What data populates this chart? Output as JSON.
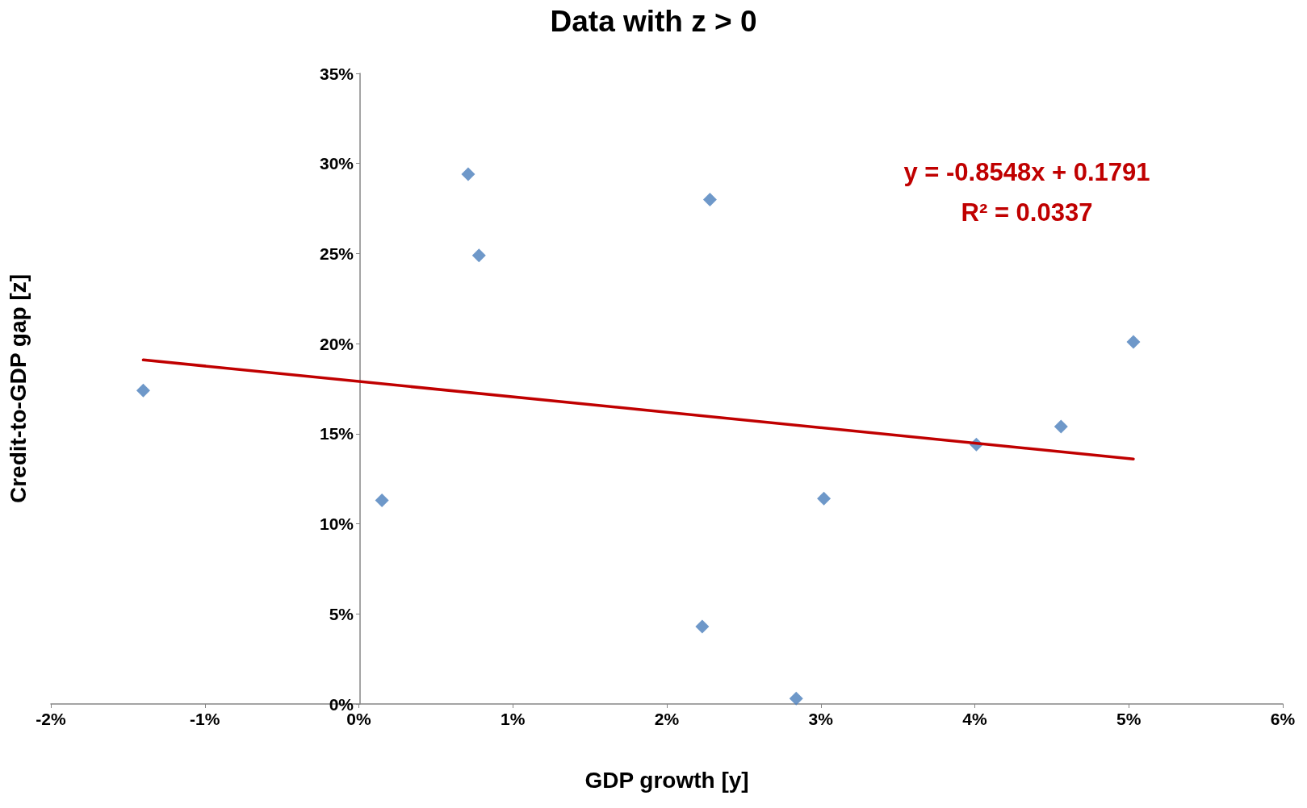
{
  "chart_data": {
    "type": "scatter",
    "title": "Data with z > 0",
    "xlabel": "GDP growth [y]",
    "ylabel": "Credit-to-GDP gap [z]",
    "annotations": [
      "y = -0.8548x + 0.1791",
      "R² = 0.0337"
    ],
    "xlim": [
      -2,
      6
    ],
    "xticks": [
      {
        "value": -2,
        "label": "-2%"
      },
      {
        "value": -1,
        "label": "-1%"
      },
      {
        "value": 0,
        "label": "0%"
      },
      {
        "value": 1,
        "label": "1%"
      },
      {
        "value": 2,
        "label": "2%"
      },
      {
        "value": 3,
        "label": "3%"
      },
      {
        "value": 4,
        "label": "4%"
      },
      {
        "value": 5,
        "label": "5%"
      },
      {
        "value": 6,
        "label": "6%"
      }
    ],
    "ylim": [
      0,
      35
    ],
    "yticks": [
      {
        "value": 0,
        "label": "0%"
      },
      {
        "value": 5,
        "label": "5%"
      },
      {
        "value": 10,
        "label": "10%"
      },
      {
        "value": 15,
        "label": "15%"
      },
      {
        "value": 20,
        "label": "20%"
      },
      {
        "value": 25,
        "label": "25%"
      },
      {
        "value": 30,
        "label": "30%"
      },
      {
        "value": 35,
        "label": "35%"
      }
    ],
    "grid": false,
    "marker": "diamond",
    "series": [
      {
        "color": "#4a7ebb",
        "x": [
          -1.4,
          0.15,
          0.71,
          0.78,
          2.23,
          2.28,
          2.84,
          3.02,
          4.01,
          4.56,
          5.03
        ],
        "values": [
          17.4,
          11.3,
          29.4,
          24.9,
          4.3,
          28.0,
          0.3,
          11.4,
          14.4,
          15.4,
          20.1
        ]
      },
      {
        "type": "line",
        "color": "#c00000",
        "marker": "none",
        "line_style": "solid",
        "x": [
          -1.4,
          5.03
        ],
        "values": [
          19.1,
          13.6
        ]
      }
    ]
  }
}
